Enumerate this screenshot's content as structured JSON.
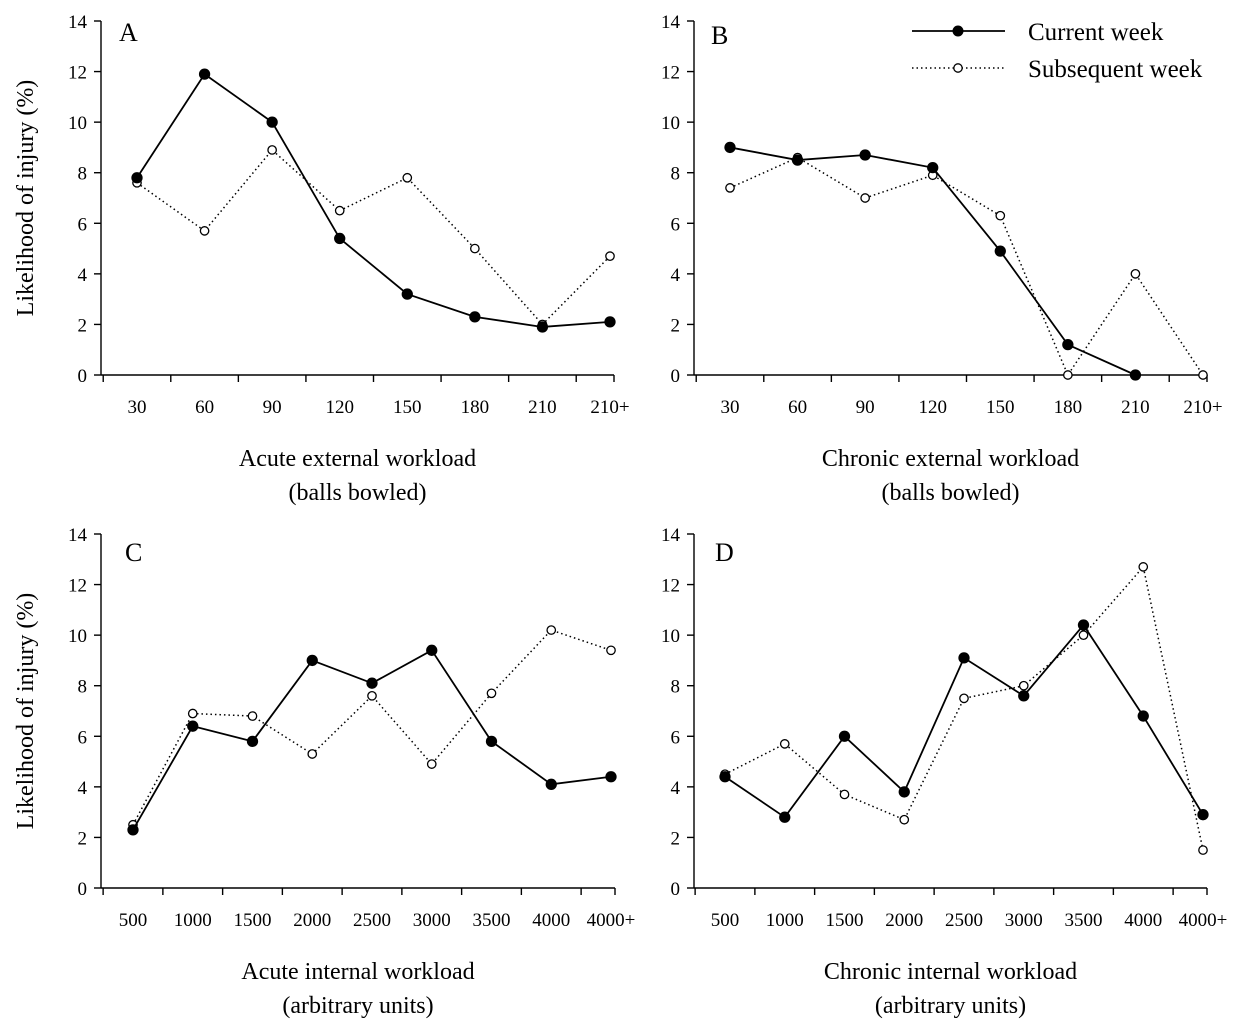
{
  "legend": {
    "current": "Current week",
    "subsequent": "Subsequent week"
  },
  "chart_data": [
    {
      "type": "line",
      "panel": "A",
      "xlabel": [
        "Acute external workload",
        "(balls bowled)"
      ],
      "ylabel": "Likelihood of injury (%)",
      "ylim": [
        0,
        14
      ],
      "yticks": [
        0,
        2,
        4,
        6,
        8,
        10,
        12,
        14
      ],
      "categories": [
        "30",
        "60",
        "90",
        "120",
        "150",
        "180",
        "210",
        "210+"
      ],
      "series": [
        {
          "name": "Current week",
          "style": "solid-filled",
          "values": [
            7.8,
            11.9,
            10.0,
            5.4,
            3.2,
            2.3,
            1.9,
            2.1
          ]
        },
        {
          "name": "Subsequent week",
          "style": "dotted-open",
          "values": [
            7.6,
            5.7,
            8.9,
            6.5,
            7.8,
            5.0,
            2.0,
            4.7
          ]
        }
      ]
    },
    {
      "type": "line",
      "panel": "B",
      "xlabel": [
        "Chronic external workload",
        "(balls bowled)"
      ],
      "ylabel": "",
      "ylim": [
        0,
        14
      ],
      "yticks": [
        0,
        2,
        4,
        6,
        8,
        10,
        12,
        14
      ],
      "categories": [
        "30",
        "60",
        "90",
        "120",
        "150",
        "180",
        "210",
        "210+"
      ],
      "series": [
        {
          "name": "Current week",
          "style": "solid-filled",
          "values": [
            9.0,
            8.5,
            8.7,
            8.2,
            4.9,
            1.2,
            0.0,
            null
          ]
        },
        {
          "name": "Subsequent week",
          "style": "dotted-open",
          "values": [
            7.4,
            8.6,
            7.0,
            7.9,
            6.3,
            0.0,
            4.0,
            0.0
          ]
        }
      ]
    },
    {
      "type": "line",
      "panel": "C",
      "xlabel": [
        "Acute internal workload",
        "(arbitrary units)"
      ],
      "ylabel": "Likelihood of injury (%)",
      "ylim": [
        0,
        14
      ],
      "yticks": [
        0,
        2,
        4,
        6,
        8,
        10,
        12,
        14
      ],
      "categories": [
        "500",
        "1000",
        "1500",
        "2000",
        "2500",
        "3000",
        "3500",
        "4000",
        "4000+"
      ],
      "series": [
        {
          "name": "Current week",
          "style": "solid-filled",
          "values": [
            2.3,
            6.4,
            5.8,
            9.0,
            8.1,
            9.4,
            5.8,
            4.1,
            4.4
          ]
        },
        {
          "name": "Subsequent week",
          "style": "dotted-open",
          "values": [
            2.5,
            6.9,
            6.8,
            5.3,
            7.6,
            4.9,
            7.7,
            10.2,
            9.4
          ]
        }
      ]
    },
    {
      "type": "line",
      "panel": "D",
      "xlabel": [
        "Chronic internal workload",
        "(arbitrary units)"
      ],
      "ylabel": "",
      "ylim": [
        0,
        14
      ],
      "yticks": [
        0,
        2,
        4,
        6,
        8,
        10,
        12,
        14
      ],
      "categories": [
        "500",
        "1000",
        "1500",
        "2000",
        "2500",
        "3000",
        "3500",
        "4000",
        "4000+"
      ],
      "series": [
        {
          "name": "Current week",
          "style": "solid-filled",
          "values": [
            4.4,
            2.8,
            6.0,
            3.8,
            9.1,
            7.6,
            10.4,
            6.8,
            2.9
          ]
        },
        {
          "name": "Subsequent week",
          "style": "dotted-open",
          "values": [
            4.5,
            5.7,
            3.7,
            2.7,
            7.5,
            8.0,
            10.0,
            12.7,
            1.5
          ]
        }
      ]
    }
  ]
}
